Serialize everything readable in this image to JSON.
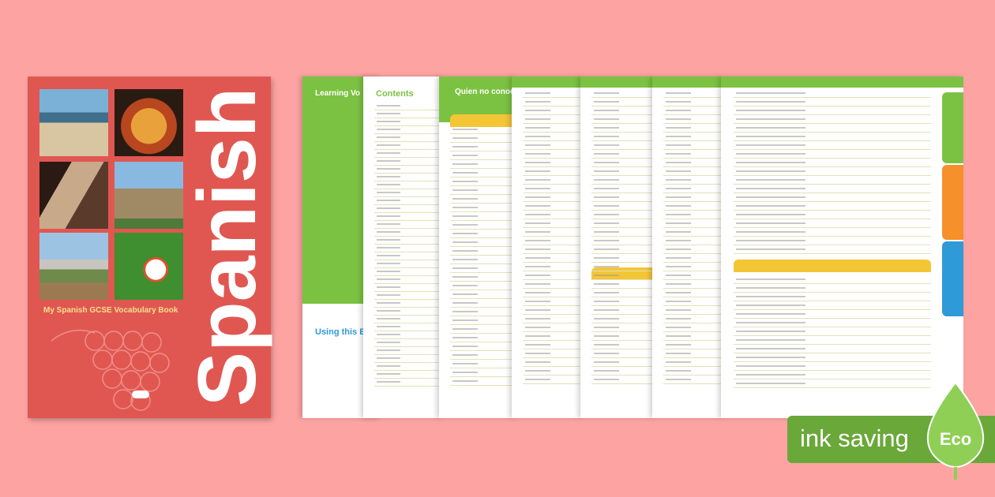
{
  "cover": {
    "title": "Spanish",
    "subtitle": "My Spanish GCSE Vocabulary Book"
  },
  "pages": {
    "learning_title": "Learning Vo",
    "contents_title": "Contents",
    "quote_title": "Quien no conoc",
    "using_title": "Using this Bo"
  },
  "badge": {
    "label": "ink saving",
    "eco": "Eco"
  }
}
